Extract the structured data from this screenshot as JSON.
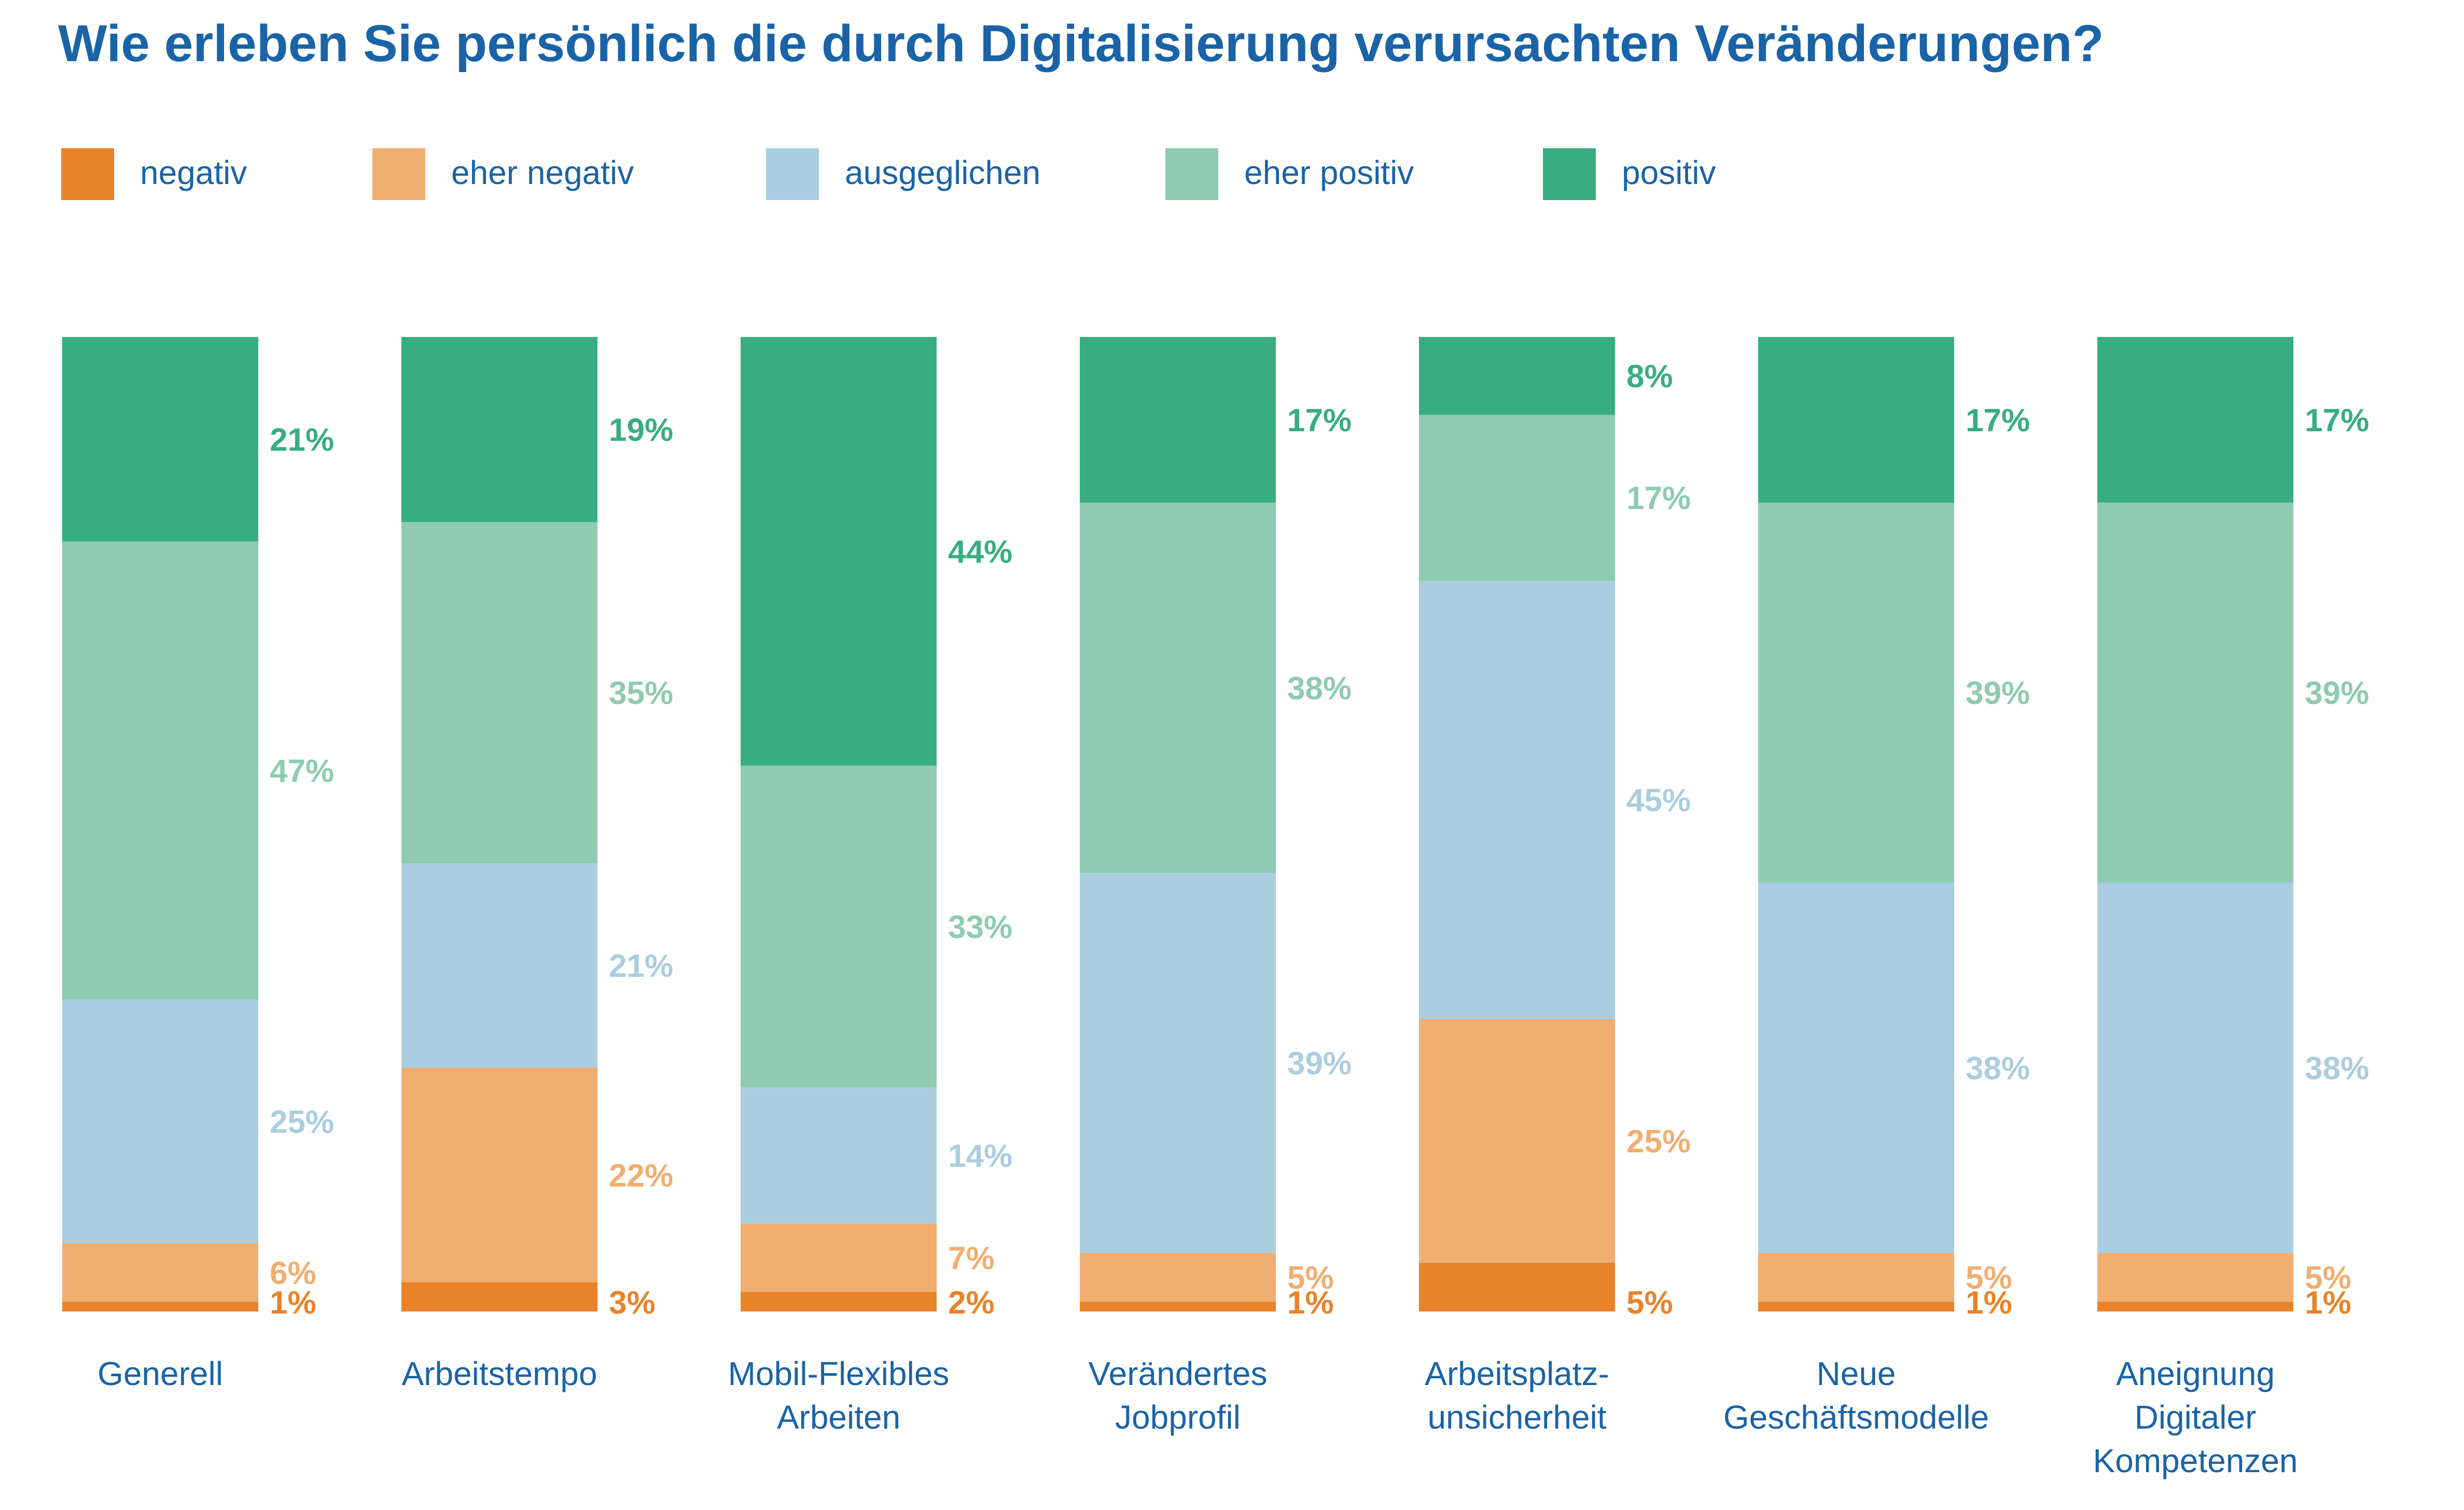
{
  "chart_data": {
    "type": "bar",
    "stacked": true,
    "normalized": true,
    "title": "Wie erleben Sie persönlich die durch Digitalisierung verursachten Veränderungen?",
    "categories": [
      [
        "Generell"
      ],
      [
        "Arbeitstempo"
      ],
      [
        "Mobil-Flexibles",
        "Arbeiten"
      ],
      [
        "Verändertes",
        "Jobprofil"
      ],
      [
        "Arbeitsplatz-",
        "unsicherheit"
      ],
      [
        "Neue",
        "Geschäftsmodelle"
      ],
      [
        "Aneignung",
        "Digitaler",
        "Kompetenzen"
      ]
    ],
    "series": [
      {
        "name": "negativ",
        "color": "#E8832A",
        "values": [
          1,
          3,
          2,
          1,
          5,
          1,
          1
        ],
        "labels": [
          "1%",
          "3%",
          "2%",
          "1%",
          "5%",
          "1%",
          "1%"
        ]
      },
      {
        "name": "eher negativ",
        "color": "#F0AE71",
        "values": [
          6,
          22,
          7,
          5,
          25,
          5,
          5
        ],
        "labels": [
          "6%",
          "22%",
          "7%",
          "5%",
          "25%",
          "5%",
          "5%"
        ]
      },
      {
        "name": "ausgeglichen",
        "color": "#ABCDE0",
        "values": [
          25,
          21,
          14,
          39,
          45,
          38,
          38
        ],
        "labels": [
          "25%",
          "21%",
          "14%",
          "39%",
          "45%",
          "38%",
          "38%"
        ]
      },
      {
        "name": "eher positiv",
        "color": "#8ECBB1",
        "values": [
          47,
          35,
          33,
          38,
          17,
          39,
          39
        ],
        "labels": [
          "47%",
          "35%",
          "33%",
          "38%",
          "17%",
          "39%",
          "39%"
        ]
      },
      {
        "name": "positiv",
        "color": "#38AD81",
        "values": [
          21,
          19,
          44,
          17,
          8,
          17,
          17
        ],
        "labels": [
          "21%",
          "19%",
          "44%",
          "17%",
          "8%",
          "17%",
          "17%"
        ]
      }
    ],
    "ylim": [
      0,
      100
    ],
    "grid": false,
    "legend_position": "top"
  },
  "colors": {
    "title": "#1A63A7",
    "category_label": "#1A63A7",
    "legend_text": "#1A63A7"
  }
}
